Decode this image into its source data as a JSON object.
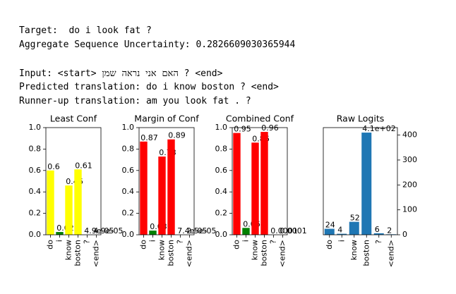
{
  "header": {
    "target": "Target:  do i look fat ?",
    "uncertainty": "Aggregate Sequence Uncertainty: 0.2826609030365944",
    "input": "Input: <start> האם אני נראה שמן ? <end>",
    "predicted": "Predicted translation: do i know boston ? <end>",
    "runner_up": "Runner-up translation: am you look fat . ?"
  },
  "chart_data": [
    {
      "type": "bar",
      "title": "Least Conf",
      "categories": [
        "do",
        "i",
        "know",
        "boston",
        "?",
        "<end>"
      ],
      "values": [
        0.6,
        0.026,
        0.46,
        0.61,
        4.9e-05,
        4.9e-05
      ],
      "value_labels": [
        "0.6",
        "0.026",
        "0.46",
        "0.61",
        "4.9e-05",
        "4.9e-05"
      ],
      "colors": [
        "#ffff00",
        "#008000",
        "#ffff00",
        "#ffff00",
        "#ffff00",
        "#ffff00"
      ],
      "ylim": [
        0,
        1
      ],
      "yticks": [
        {
          "value": 0,
          "label": "0.0"
        },
        0.2,
        0.4,
        0.6,
        0.8,
        {
          "value": 1,
          "label": "1.0"
        }
      ],
      "yaxis_side": "left"
    },
    {
      "type": "bar",
      "title": "Margin of Conf",
      "categories": [
        "do",
        "i",
        "know",
        "boston",
        "?",
        "<end>"
      ],
      "values": [
        0.87,
        0.039,
        0.73,
        0.89,
        7.4e-05,
        2.5e-05
      ],
      "value_labels": [
        "0.87",
        "0.039",
        "0.73",
        "0.89",
        "7.4e-05",
        "2.5e-05"
      ],
      "colors": [
        "#ff0000",
        "#008000",
        "#ff0000",
        "#ff0000",
        "#ff0000",
        "#ff0000"
      ],
      "ylim": [
        0,
        1
      ],
      "yticks": [
        {
          "value": 0,
          "label": "0.0"
        },
        0.2,
        0.4,
        0.6,
        0.8,
        {
          "value": 1,
          "label": "1.0"
        }
      ],
      "yaxis_side": "left"
    },
    {
      "type": "bar",
      "title": "Combined Conf",
      "categories": [
        "do",
        "i",
        "know",
        "boston",
        "?",
        "<end>"
      ],
      "values": [
        0.95,
        0.064,
        0.86,
        0.96,
        0.0001,
        0.0001
      ],
      "value_labels": [
        "0.95",
        "0.064",
        "0.86",
        "0.96",
        "0.0001",
        "0.0001"
      ],
      "colors": [
        "#ff0000",
        "#008000",
        "#ff0000",
        "#ff0000",
        "#ff0000",
        "#ff0000"
      ],
      "ylim": [
        0,
        1
      ],
      "yticks": [
        {
          "value": 0,
          "label": "0.0"
        },
        0.2,
        0.4,
        0.6,
        0.8,
        {
          "value": 1,
          "label": "1.0"
        }
      ],
      "yaxis_side": "left"
    },
    {
      "type": "bar",
      "title": "Raw Logits",
      "categories": [
        "do",
        "i",
        "know",
        "boston",
        "?",
        "<end>"
      ],
      "values": [
        24,
        4,
        52,
        410,
        6,
        2
      ],
      "value_labels": [
        "24",
        "4",
        "52",
        "4.1e+02",
        "6",
        "2"
      ],
      "color": "#1f77b4",
      "ylim": [
        0,
        430
      ],
      "yticks": [
        0,
        100,
        200,
        300,
        400
      ],
      "yaxis_side": "right"
    }
  ]
}
